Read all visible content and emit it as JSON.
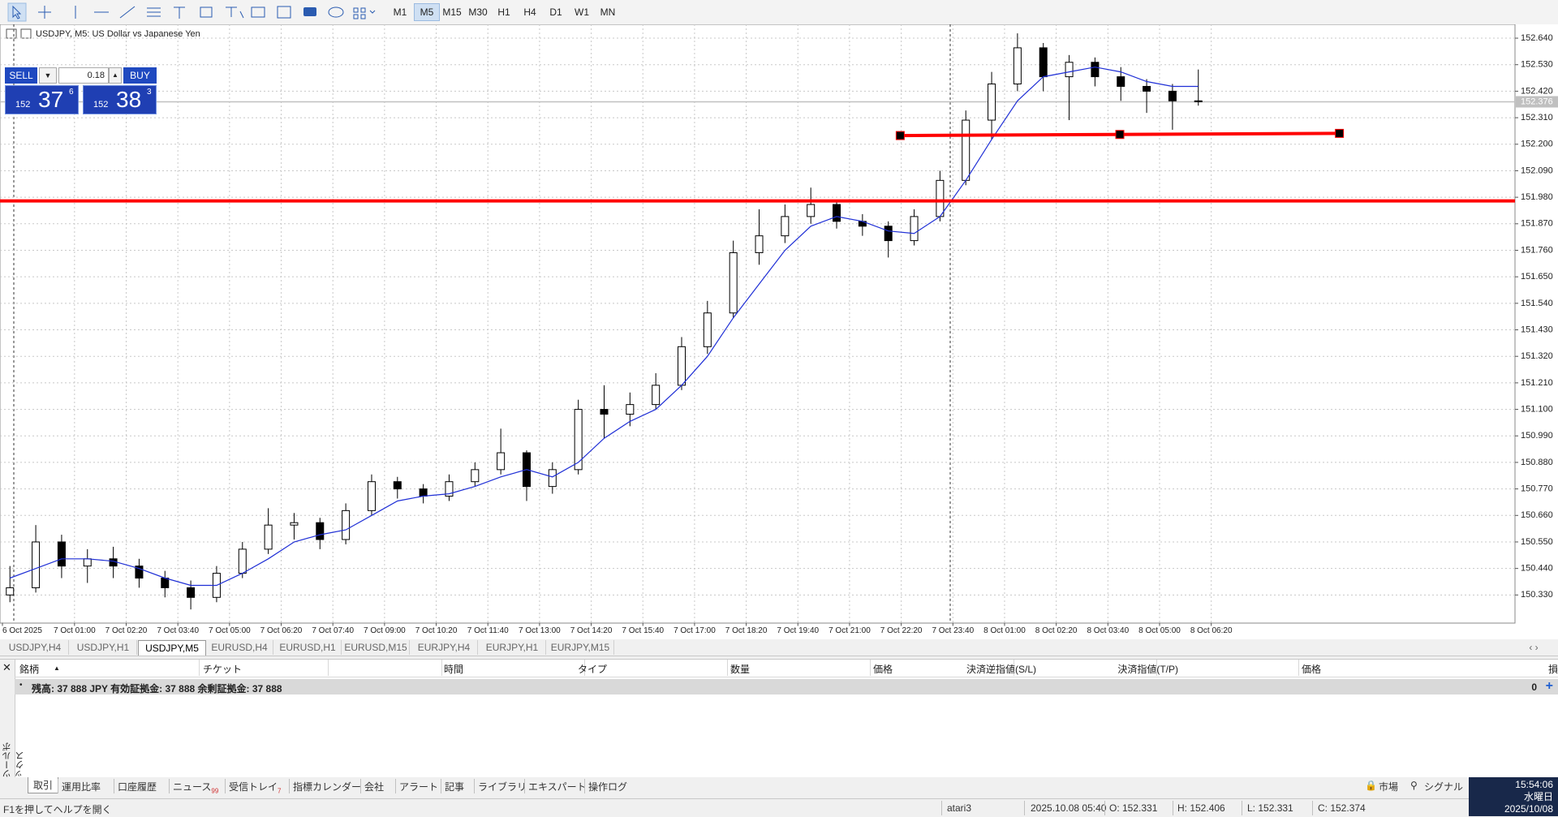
{
  "toolbar": {
    "timeframes": [
      "M1",
      "M5",
      "M15",
      "M30",
      "H1",
      "H4",
      "D1",
      "W1",
      "MN"
    ],
    "active": "M5"
  },
  "chart_data": {
    "type": "candlestick",
    "title": "USDJPY, M5:  US Dollar vs Japanese Yen",
    "candles": {
      "open": [
        150.33,
        150.36,
        150.55,
        150.45,
        150.48,
        150.45,
        150.4,
        150.36,
        150.32,
        150.42,
        150.52,
        150.62,
        150.63,
        150.56,
        150.68,
        150.8,
        150.77,
        150.74,
        150.8,
        150.85,
        150.92,
        150.78,
        150.85,
        151.1,
        151.08,
        151.12,
        151.2,
        151.36,
        151.5,
        151.75,
        151.82,
        151.9,
        151.95,
        151.88,
        151.86,
        151.8,
        151.9,
        152.05,
        152.3,
        152.45,
        152.6,
        152.48,
        152.54,
        152.48,
        152.44,
        152.42,
        152.38
      ],
      "high": [
        150.45,
        150.62,
        150.58,
        150.52,
        150.53,
        150.48,
        150.43,
        150.39,
        150.45,
        150.55,
        150.69,
        150.67,
        150.65,
        150.71,
        150.83,
        150.82,
        150.79,
        150.83,
        150.88,
        151.02,
        150.93,
        150.88,
        151.14,
        151.2,
        151.17,
        151.25,
        151.4,
        151.55,
        151.8,
        151.93,
        151.95,
        152.02,
        151.97,
        151.91,
        151.88,
        151.93,
        152.09,
        152.34,
        152.5,
        152.66,
        152.62,
        152.57,
        152.56,
        152.52,
        152.47,
        152.45,
        152.51
      ],
      "low": [
        150.3,
        150.34,
        150.4,
        150.38,
        150.4,
        150.36,
        150.32,
        150.27,
        150.3,
        150.4,
        150.5,
        150.56,
        150.52,
        150.54,
        150.66,
        150.73,
        150.71,
        150.72,
        150.78,
        150.83,
        150.72,
        150.75,
        150.83,
        150.98,
        151.03,
        151.1,
        151.18,
        151.33,
        151.48,
        151.7,
        151.79,
        151.87,
        151.85,
        151.82,
        151.73,
        151.78,
        151.88,
        152.03,
        152.22,
        152.42,
        152.42,
        152.3,
        152.44,
        152.38,
        152.33,
        152.26,
        152.36
      ],
      "close": [
        150.36,
        150.55,
        150.45,
        150.48,
        150.45,
        150.4,
        150.36,
        150.32,
        150.42,
        150.52,
        150.62,
        150.63,
        150.56,
        150.68,
        150.8,
        150.77,
        150.74,
        150.8,
        150.85,
        150.92,
        150.78,
        150.85,
        151.1,
        151.08,
        151.12,
        151.2,
        151.36,
        151.5,
        151.75,
        151.82,
        151.9,
        151.95,
        151.88,
        151.86,
        151.8,
        151.9,
        152.05,
        152.3,
        152.45,
        152.6,
        152.48,
        152.54,
        152.48,
        152.44,
        152.42,
        152.38,
        152.376
      ]
    },
    "ma": {
      "color": "#1f2fd6",
      "values": [
        150.4,
        150.44,
        150.48,
        150.48,
        150.47,
        150.44,
        150.4,
        150.37,
        150.37,
        150.42,
        150.48,
        150.55,
        150.58,
        150.6,
        150.66,
        150.72,
        150.74,
        150.75,
        150.78,
        150.82,
        150.85,
        150.82,
        150.88,
        150.98,
        151.05,
        151.1,
        151.2,
        151.32,
        151.48,
        151.62,
        151.76,
        151.86,
        151.9,
        151.88,
        151.84,
        151.83,
        151.9,
        152.05,
        152.22,
        152.38,
        152.48,
        152.5,
        152.52,
        152.5,
        152.46,
        152.44,
        152.44
      ]
    },
    "hline": 151.965,
    "trendline": [
      152.236,
      152.245
    ],
    "bid": 152.376,
    "line_color": "#ff0000",
    "grid": true,
    "ylim": [
      150.215,
      152.694
    ],
    "yticks": [
      {
        "value": 152.64,
        "label": "152.640"
      },
      {
        "value": 152.53,
        "label": "152.530"
      },
      {
        "value": 152.42,
        "label": "152.420"
      },
      {
        "value": 152.31,
        "label": "152.310"
      },
      {
        "value": 152.2,
        "label": "152.200"
      },
      {
        "value": 152.09,
        "label": "152.090"
      },
      {
        "value": 151.98,
        "label": "151.980"
      },
      {
        "value": 151.87,
        "label": "151.870"
      },
      {
        "value": 151.76,
        "label": "151.760"
      },
      {
        "value": 151.65,
        "label": "151.650"
      },
      {
        "value": 151.54,
        "label": "151.540"
      },
      {
        "value": 151.43,
        "label": "151.430"
      },
      {
        "value": 151.32,
        "label": "151.320"
      },
      {
        "value": 151.21,
        "label": "151.210"
      },
      {
        "value": 151.1,
        "label": "151.100"
      },
      {
        "value": 150.99,
        "label": "150.990"
      },
      {
        "value": 150.88,
        "label": "150.880"
      },
      {
        "value": 150.77,
        "label": "150.770"
      },
      {
        "value": 150.66,
        "label": "150.660"
      },
      {
        "value": 150.55,
        "label": "150.550"
      },
      {
        "value": 150.44,
        "label": "150.440"
      },
      {
        "value": 150.33,
        "label": "150.330"
      }
    ],
    "x_labels": [
      "6 Oct 2025",
      "7 Oct 01:00",
      "7 Oct 02:20",
      "7 Oct 03:40",
      "7 Oct 05:00",
      "7 Oct 06:20",
      "7 Oct 07:40",
      "7 Oct 09:00",
      "7 Oct 10:20",
      "7 Oct 11:40",
      "7 Oct 13:00",
      "7 Oct 14:20",
      "7 Oct 15:40",
      "7 Oct 17:00",
      "7 Oct 18:20",
      "7 Oct 19:40",
      "7 Oct 21:00",
      "7 Oct 22:20",
      "7 Oct 23:40",
      "8 Oct 01:00",
      "8 Oct 02:20",
      "8 Oct 03:40",
      "8 Oct 05:00",
      "8 Oct 06:20"
    ]
  },
  "trade_panel": {
    "sell": "SELL",
    "buy": "BUY",
    "volume": "0.18",
    "bid": {
      "big": "152",
      "pips": "37",
      "point": "6"
    },
    "ask": {
      "big": "152",
      "pips": "38",
      "point": "3"
    }
  },
  "chart_tabs": {
    "tabs": [
      "USDJPY,H4",
      "USDJPY,H1",
      "USDJPY,M5",
      "EURUSD,H4",
      "EURUSD,H1",
      "EURUSD,M15",
      "EURJPY,H4",
      "EURJPY,H1",
      "EURJPY,M15"
    ],
    "active": "USDJPY,M5"
  },
  "toolbox": {
    "side_title": "ツールボックス",
    "columns": [
      "銘柄",
      "チケット",
      "時間",
      "タイプ",
      "数量",
      "価格",
      "決済逆指値(S/L)",
      "決済指値(T/P)",
      "価格",
      "損益"
    ],
    "balance_row": {
      "text": "残高: 37 888 JPY  有効証拠金: 37 888  余剰証拠金: 37 888",
      "profit": "0"
    },
    "tabs": [
      "取引",
      "運用比率",
      "口座履歴",
      "ニュース",
      "受信トレイ",
      "指標カレンダー",
      "会社",
      "アラート",
      "記事",
      "ライブラリ",
      "エキスパート",
      "操作ログ"
    ],
    "news_count": "99",
    "inbox_count": "7",
    "market": "市場",
    "signals": "シグナル"
  },
  "clock": {
    "time": "15:54:06",
    "weekday": "水曜日",
    "date": "2025/10/08"
  },
  "status": {
    "help": "F1を押してヘルプを開く",
    "profile": "atari3",
    "datetime": "2025.10.08 05:40",
    "open": "O: 152.331",
    "high": "H: 152.406",
    "low": "L: 152.331",
    "close": "C: 152.374"
  }
}
